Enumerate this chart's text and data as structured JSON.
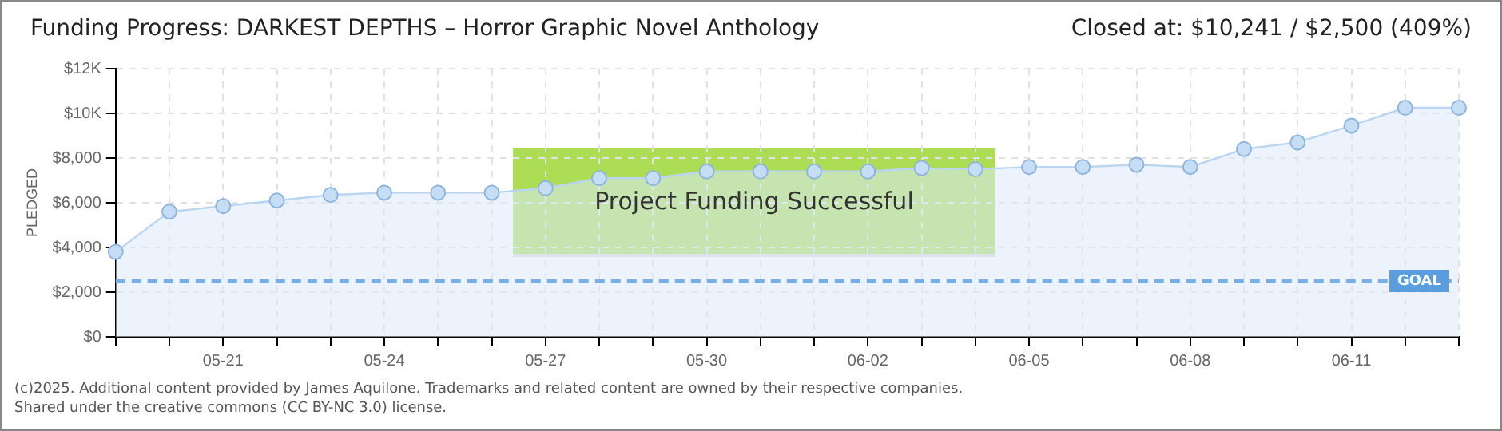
{
  "chart_data": {
    "type": "area",
    "title": "Funding Progress: DARKEST DEPTHS – Horror Graphic Novel Anthology",
    "subtitle": "Closed at: $10,241 / $2,500 (409%)",
    "ylabel": "PLEDGED",
    "categories": [
      null,
      null,
      "05-21",
      null,
      null,
      "05-24",
      null,
      null,
      "05-27",
      null,
      null,
      "05-30",
      null,
      null,
      "06-02",
      null,
      null,
      "06-05",
      null,
      null,
      "06-08",
      null,
      null,
      "06-11",
      null,
      null
    ],
    "series": [
      {
        "color": "#b9d5f2",
        "values": [
          3800,
          5600,
          5850,
          6100,
          6350,
          6450,
          6450,
          6450,
          6650,
          7100,
          7100,
          7400,
          7400,
          7400,
          7400,
          7550,
          7500,
          7600,
          7600,
          7700,
          7600,
          8400,
          8700,
          9450,
          10250,
          10250
        ]
      }
    ],
    "ylim": [
      0,
      12000
    ],
    "yticks": [
      {
        "value": 0,
        "label": "$0"
      },
      {
        "value": 2000,
        "label": "$2,000"
      },
      {
        "value": 4000,
        "label": "$4,000"
      },
      {
        "value": 6000,
        "label": "$6,000"
      },
      {
        "value": 8000,
        "label": "$8,000"
      },
      {
        "value": 10000,
        "label": "$10K"
      },
      {
        "value": 12000,
        "label": "$12K"
      }
    ],
    "ref_lines": [
      {
        "axis": "y",
        "value": 2500,
        "label": "GOAL",
        "color": "#7aaee6",
        "line_style": "dashed"
      }
    ],
    "annotations": [
      "Project Funding Successful",
      "(c)2025. Additional content provided by James Aquilone. Trademarks and related content are owned by their respective companies.",
      "Shared under the creative commons (CC BY-NC 3.0) license."
    ],
    "grid": true,
    "legend": false,
    "marker": "circle",
    "line_style": "solid"
  }
}
